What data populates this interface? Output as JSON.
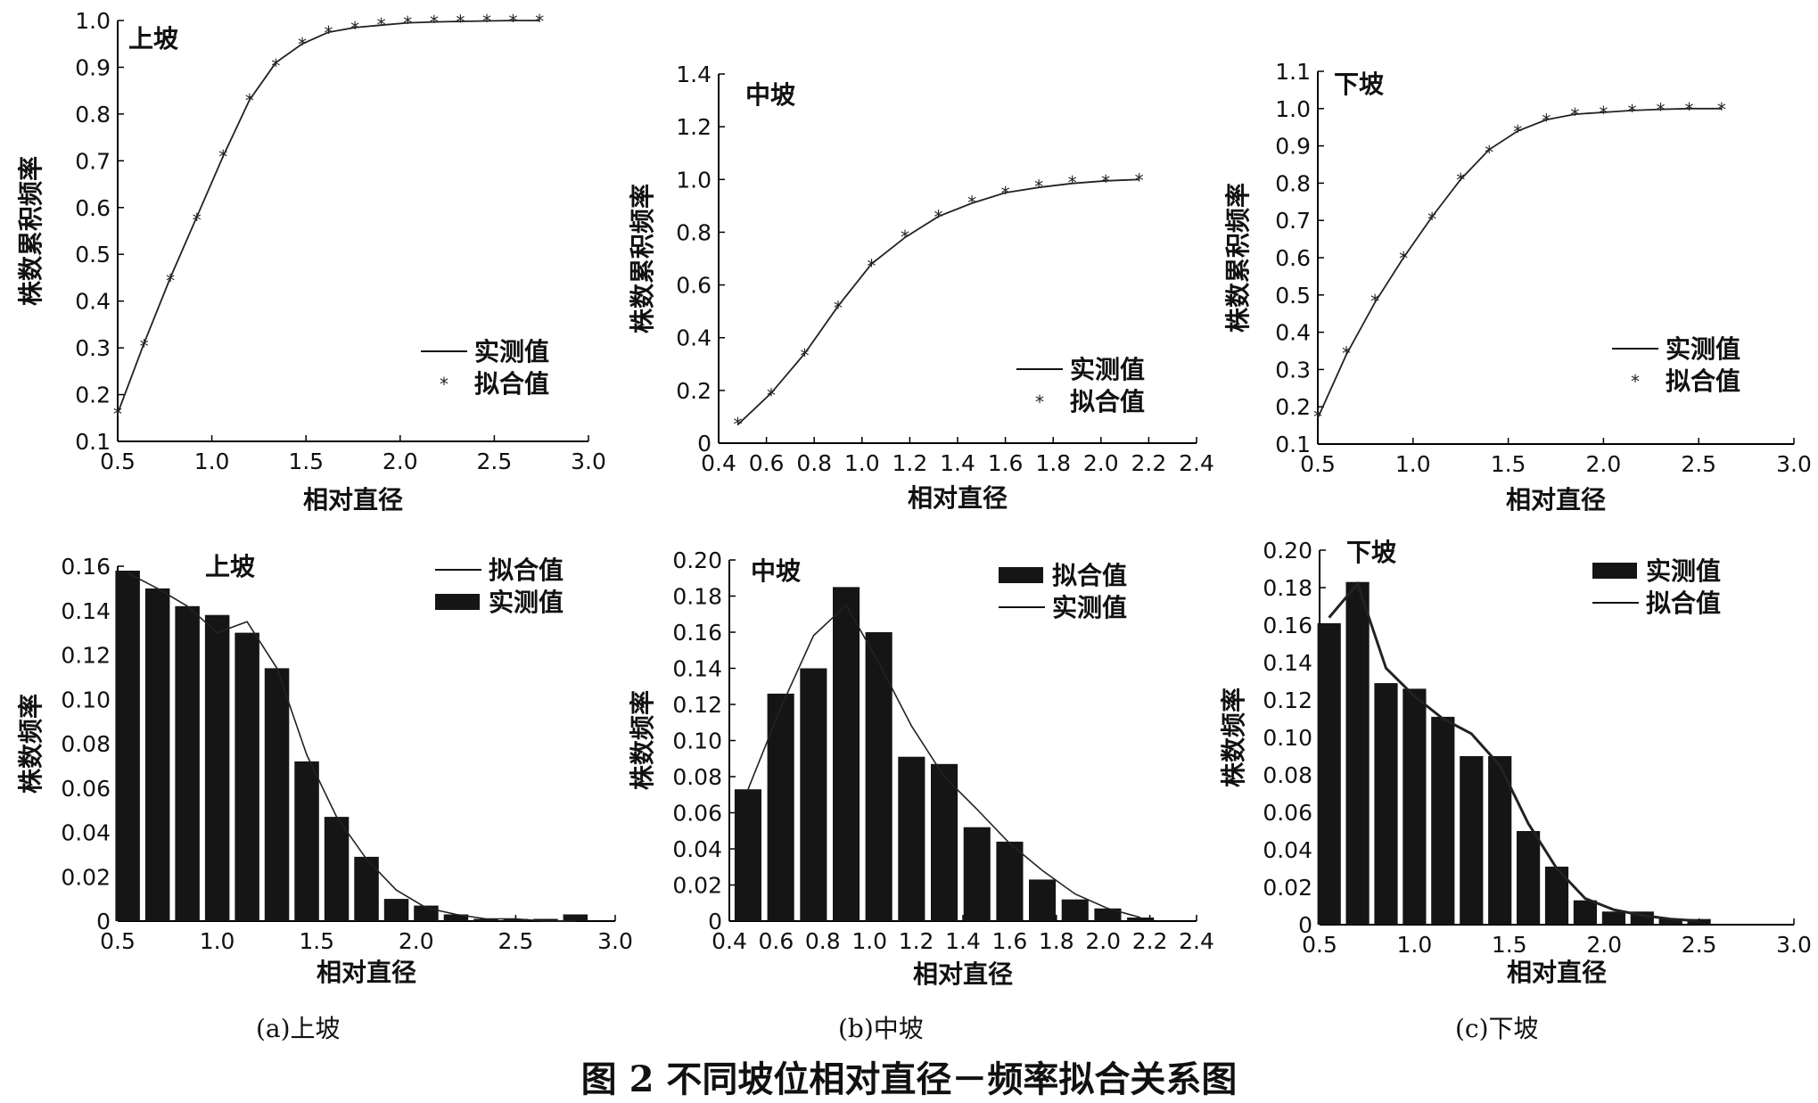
{
  "figure_caption": "图 2   不同坡位相对直径－频率拟合关系图",
  "subcaptions": [
    "(a)上坡",
    "(b)中坡",
    "(c)下坡"
  ],
  "chart_data": [
    {
      "type": "line",
      "id": "cum-upper",
      "title": "上坡",
      "xlabel": "相对直径",
      "ylabel": "株数累积频率",
      "xlim": [
        0.5,
        3.0
      ],
      "ylim": [
        0.1,
        1.0
      ],
      "xticks": [
        "0.5",
        "1.0",
        "1.5",
        "2.0",
        "2.5",
        "3.0"
      ],
      "yticks": [
        "0.1",
        "0.2",
        "0.3",
        "0.4",
        "0.5",
        "0.6",
        "0.7",
        "0.8",
        "0.9",
        "1.0"
      ],
      "legend_placement": "bottom-right",
      "legend": [
        {
          "label": "实测值",
          "style": "line"
        },
        {
          "label": "拟合值",
          "style": "marker"
        }
      ],
      "x": [
        0.5,
        0.64,
        0.78,
        0.92,
        1.06,
        1.2,
        1.34,
        1.48,
        1.62,
        1.76,
        1.9,
        2.04,
        2.18,
        2.32,
        2.46,
        2.6,
        2.74
      ],
      "series": [
        {
          "name": "实测值",
          "values": [
            0.16,
            0.31,
            0.45,
            0.58,
            0.71,
            0.83,
            0.91,
            0.95,
            0.975,
            0.985,
            0.99,
            0.995,
            0.997,
            0.998,
            0.999,
            1.0,
            1.0
          ]
        },
        {
          "name": "拟合值",
          "values": [
            0.16,
            0.305,
            0.445,
            0.575,
            0.71,
            0.83,
            0.905,
            0.95,
            0.975,
            0.985,
            0.992,
            0.996,
            0.998,
            0.999,
            1.0,
            1.0,
            1.0
          ]
        }
      ]
    },
    {
      "type": "line",
      "id": "cum-middle",
      "title": "中坡",
      "xlabel": "相对直径",
      "ylabel": "株数累积频率",
      "xlim": [
        0.4,
        2.4
      ],
      "ylim": [
        0,
        1.4
      ],
      "xticks": [
        "0.4",
        "0.6",
        "0.8",
        "1.0",
        "1.2",
        "1.4",
        "1.6",
        "1.8",
        "2.0",
        "2.2",
        "2.4"
      ],
      "yticks": [
        "0",
        "0.2",
        "0.4",
        "0.6",
        "0.8",
        "1.0",
        "1.2",
        "1.4"
      ],
      "legend_placement": "bottom-right",
      "legend": [
        {
          "label": "实测值",
          "style": "line"
        },
        {
          "label": "拟合值",
          "style": "marker"
        }
      ],
      "x": [
        0.48,
        0.62,
        0.76,
        0.9,
        1.04,
        1.18,
        1.32,
        1.46,
        1.6,
        1.74,
        1.88,
        2.02,
        2.16
      ],
      "series": [
        {
          "name": "实测值",
          "values": [
            0.07,
            0.19,
            0.34,
            0.52,
            0.68,
            0.78,
            0.86,
            0.91,
            0.95,
            0.97,
            0.985,
            0.995,
            1.0
          ]
        },
        {
          "name": "拟合值",
          "values": [
            0.075,
            0.185,
            0.335,
            0.515,
            0.675,
            0.785,
            0.86,
            0.915,
            0.95,
            0.975,
            0.99,
            0.995,
            1.0
          ]
        }
      ]
    },
    {
      "type": "line",
      "id": "cum-lower",
      "title": "下坡",
      "xlabel": "相对直径",
      "ylabel": "株数累积频率",
      "xlim": [
        0.5,
        3.0
      ],
      "ylim": [
        0.1,
        1.1
      ],
      "xticks": [
        "0.5",
        "1.0",
        "1.5",
        "2.0",
        "2.5",
        "3.0"
      ],
      "yticks": [
        "0.1",
        "0.2",
        "0.3",
        "0.4",
        "0.5",
        "0.6",
        "0.7",
        "0.8",
        "0.9",
        "1.0",
        "1.1"
      ],
      "legend_placement": "top-right",
      "legend": [
        {
          "label": "实测值",
          "style": "line"
        },
        {
          "label": "拟合值",
          "style": "marker"
        }
      ],
      "x": [
        0.5,
        0.65,
        0.8,
        0.95,
        1.1,
        1.25,
        1.4,
        1.55,
        1.7,
        1.85,
        2.0,
        2.15,
        2.3,
        2.45,
        2.62
      ],
      "series": [
        {
          "name": "实测值",
          "values": [
            0.17,
            0.34,
            0.48,
            0.6,
            0.71,
            0.81,
            0.89,
            0.94,
            0.97,
            0.985,
            0.99,
            0.995,
            0.998,
            1.0,
            1.0
          ]
        },
        {
          "name": "拟合值",
          "values": [
            0.175,
            0.345,
            0.485,
            0.6,
            0.705,
            0.81,
            0.885,
            0.94,
            0.97,
            0.985,
            0.99,
            0.995,
            0.998,
            1.0,
            1.0
          ]
        }
      ]
    },
    {
      "type": "bar",
      "id": "freq-upper",
      "title": "上坡",
      "xlabel": "相对直径",
      "ylabel": "株数频率",
      "xlim": [
        0.5,
        3.0
      ],
      "ylim": [
        0,
        0.16
      ],
      "xticks": [
        "0.5",
        "1.0",
        "1.5",
        "2.0",
        "2.5",
        "3.0"
      ],
      "yticks": [
        "0",
        "0.02",
        "0.04",
        "0.06",
        "0.08",
        "0.10",
        "0.12",
        "0.14",
        "0.16"
      ],
      "legend_placement": "top-right",
      "legend": [
        {
          "label": "拟合值",
          "style": "line"
        },
        {
          "label": "实测值",
          "style": "bar"
        }
      ],
      "x": [
        0.55,
        0.7,
        0.85,
        1.0,
        1.15,
        1.3,
        1.45,
        1.6,
        1.75,
        1.9,
        2.05,
        2.2,
        2.35,
        2.5,
        2.65,
        2.8
      ],
      "series": [
        {
          "name": "实测值",
          "values": [
            0.158,
            0.15,
            0.142,
            0.138,
            0.13,
            0.114,
            0.072,
            0.047,
            0.029,
            0.01,
            0.007,
            0.003,
            0.001,
            0.001,
            0.001,
            0.003
          ]
        },
        {
          "name": "拟合值",
          "values": [
            0.157,
            0.15,
            0.142,
            0.13,
            0.135,
            0.114,
            0.075,
            0.047,
            0.028,
            0.014,
            0.006,
            0.003,
            0.001,
            0.001,
            0.0,
            0.0
          ]
        }
      ]
    },
    {
      "type": "bar",
      "id": "freq-middle",
      "title": "中坡",
      "xlabel": "相对直径",
      "ylabel": "株数频率",
      "xlim": [
        0.4,
        2.4
      ],
      "ylim": [
        0,
        0.2
      ],
      "xticks": [
        "0.4",
        "0.6",
        "0.8",
        "1.0",
        "1.2",
        "1.4",
        "1.6",
        "1.8",
        "2.0",
        "2.2",
        "2.4"
      ],
      "yticks": [
        "0",
        "0.02",
        "0.04",
        "0.06",
        "0.08",
        "0.10",
        "0.12",
        "0.14",
        "0.16",
        "0.18",
        "0.20"
      ],
      "legend_placement": "top-right",
      "legend": [
        {
          "label": "拟合值",
          "style": "bar"
        },
        {
          "label": "实测值",
          "style": "line"
        }
      ],
      "x": [
        0.48,
        0.62,
        0.76,
        0.9,
        1.04,
        1.18,
        1.32,
        1.46,
        1.6,
        1.74,
        1.88,
        2.02,
        2.16
      ],
      "series": [
        {
          "name": "拟合值",
          "values": [
            0.073,
            0.126,
            0.14,
            0.185,
            0.16,
            0.091,
            0.087,
            0.052,
            0.044,
            0.023,
            0.012,
            0.007,
            0.002
          ]
        },
        {
          "name": "实测值",
          "values": [
            0.073,
            0.118,
            0.158,
            0.175,
            0.143,
            0.108,
            0.08,
            0.062,
            0.043,
            0.028,
            0.015,
            0.007,
            0.002
          ]
        }
      ]
    },
    {
      "type": "bar",
      "id": "freq-lower",
      "title": "下坡",
      "xlabel": "相对直径",
      "ylabel": "株数频率",
      "xlim": [
        0.5,
        3.0
      ],
      "ylim": [
        0,
        0.2
      ],
      "xticks": [
        "0.5",
        "1.0",
        "1.5",
        "2.0",
        "2.5",
        "3.0"
      ],
      "yticks": [
        "0",
        "0.02",
        "0.04",
        "0.06",
        "0.08",
        "0.10",
        "0.12",
        "0.14",
        "0.16",
        "0.18",
        "0.20"
      ],
      "legend_placement": "top-right",
      "legend": [
        {
          "label": "实测值",
          "style": "bar"
        },
        {
          "label": "拟合值",
          "style": "line"
        }
      ],
      "x": [
        0.55,
        0.7,
        0.85,
        1.0,
        1.15,
        1.3,
        1.45,
        1.6,
        1.75,
        1.9,
        2.05,
        2.2,
        2.35,
        2.5
      ],
      "series": [
        {
          "name": "实测值",
          "values": [
            0.161,
            0.183,
            0.129,
            0.126,
            0.111,
            0.09,
            0.09,
            0.05,
            0.031,
            0.013,
            0.007,
            0.007,
            0.003,
            0.003
          ]
        },
        {
          "name": "拟合值",
          "values": [
            0.164,
            0.182,
            0.137,
            0.122,
            0.11,
            0.102,
            0.085,
            0.054,
            0.03,
            0.014,
            0.008,
            0.005,
            0.003,
            0.002
          ]
        }
      ]
    }
  ]
}
